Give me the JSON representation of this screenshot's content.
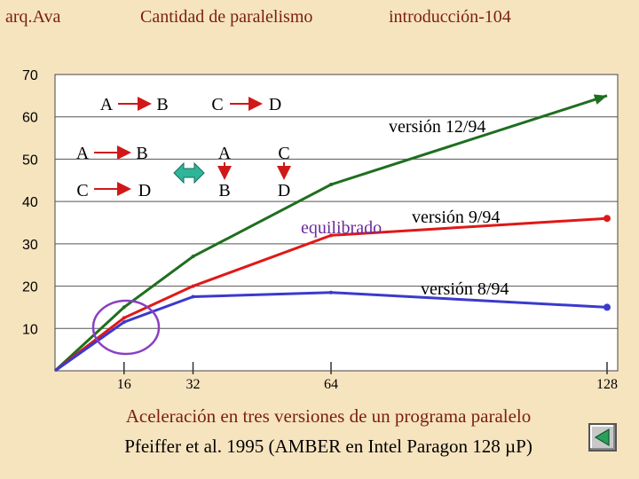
{
  "header": {
    "left": "arq.Ava",
    "center": "Cantidad de paralelismo",
    "right": "introducción-104"
  },
  "caption": {
    "line1": "Aceleración en tres versiones de un programa paralelo",
    "line2": "Pfeiffer et al. 1995 (AMBER en Intel Paragon 128 µP)"
  },
  "nav": {
    "icon": "back-arrow-icon"
  },
  "diagram": {
    "row1": [
      "A",
      "B",
      "C",
      "D"
    ],
    "grid_left": [
      [
        "A",
        "B"
      ],
      [
        "C",
        "D"
      ]
    ],
    "grid_right": [
      [
        "A",
        "C"
      ],
      [
        "B",
        "D"
      ]
    ]
  },
  "chart_data": {
    "type": "line",
    "xlim": [
      0,
      128
    ],
    "ylim": [
      0,
      70
    ],
    "x_ticks": [
      16,
      32,
      64,
      128
    ],
    "y_ticks": [
      10,
      20,
      30,
      40,
      50,
      60,
      70
    ],
    "grid": "horizontal",
    "series": [
      {
        "name": "versión 12/94",
        "color": "#1f6e1f",
        "x": [
          0,
          16,
          32,
          64,
          128
        ],
        "y": [
          0,
          15,
          27,
          44,
          65
        ]
      },
      {
        "name": "versión 9/94",
        "color": "#e01818",
        "x": [
          0,
          16,
          32,
          64,
          128
        ],
        "y": [
          0,
          12.5,
          20,
          32,
          36
        ]
      },
      {
        "name": "versión 8/94",
        "color": "#3a3acc",
        "x": [
          0,
          16,
          32,
          64,
          128
        ],
        "y": [
          0,
          11.5,
          17.5,
          18.5,
          15
        ]
      }
    ],
    "annotations": [
      "equilibrado"
    ]
  }
}
